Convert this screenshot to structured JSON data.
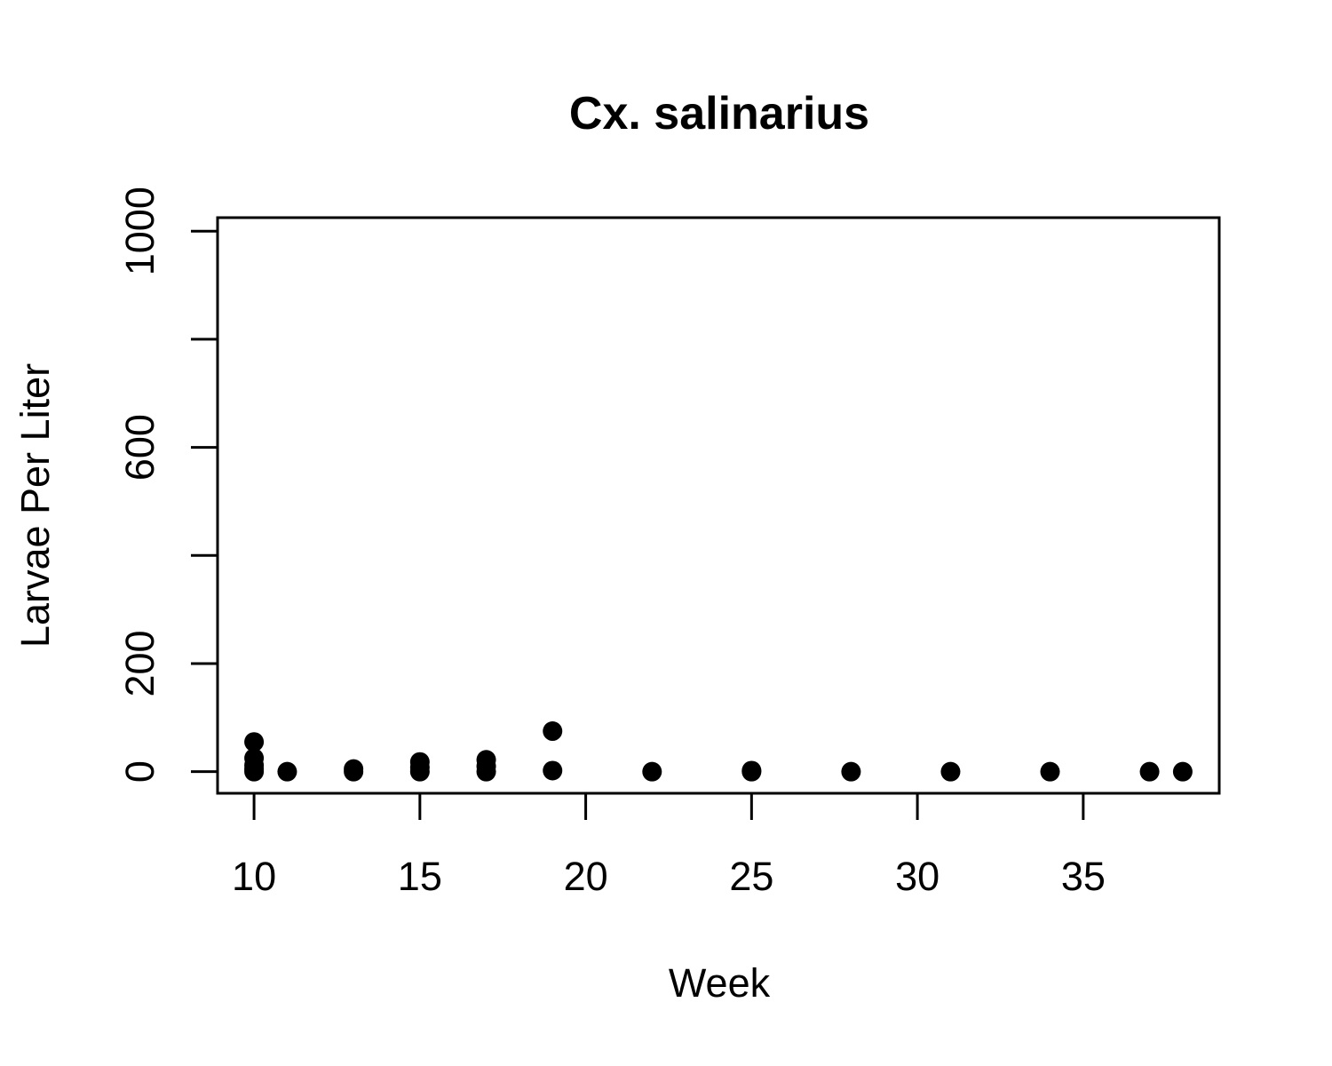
{
  "chart_data": {
    "type": "scatter",
    "title": "Cx. salinarius",
    "xlabel": "Week",
    "ylabel": "Larvae Per Liter",
    "xlim": [
      8.9,
      39.1
    ],
    "ylim": [
      -40,
      1025
    ],
    "x_ticks": [
      10,
      15,
      20,
      25,
      30,
      35
    ],
    "y_ticks": [
      0,
      200,
      400,
      600,
      800,
      1000
    ],
    "y_tick_labels": [
      "0",
      "200",
      "",
      "600",
      "",
      "1000"
    ],
    "grid": false,
    "legend": "none",
    "point_color": "#000000",
    "series": [
      {
        "points": [
          {
            "x": 10,
            "y": 55
          },
          {
            "x": 10,
            "y": 25
          },
          {
            "x": 10,
            "y": 12
          },
          {
            "x": 10,
            "y": 5
          },
          {
            "x": 10,
            "y": 0
          },
          {
            "x": 11,
            "y": 0
          },
          {
            "x": 13,
            "y": 5
          },
          {
            "x": 13,
            "y": 0
          },
          {
            "x": 15,
            "y": 18
          },
          {
            "x": 15,
            "y": 8
          },
          {
            "x": 15,
            "y": 0
          },
          {
            "x": 17,
            "y": 22
          },
          {
            "x": 17,
            "y": 10
          },
          {
            "x": 17,
            "y": 0
          },
          {
            "x": 19,
            "y": 75
          },
          {
            "x": 19,
            "y": 2
          },
          {
            "x": 22,
            "y": 0
          },
          {
            "x": 25,
            "y": 2
          },
          {
            "x": 25,
            "y": 0
          },
          {
            "x": 28,
            "y": 0
          },
          {
            "x": 31,
            "y": 0
          },
          {
            "x": 34,
            "y": 0
          },
          {
            "x": 37,
            "y": 0
          },
          {
            "x": 38,
            "y": 0
          }
        ]
      }
    ]
  }
}
